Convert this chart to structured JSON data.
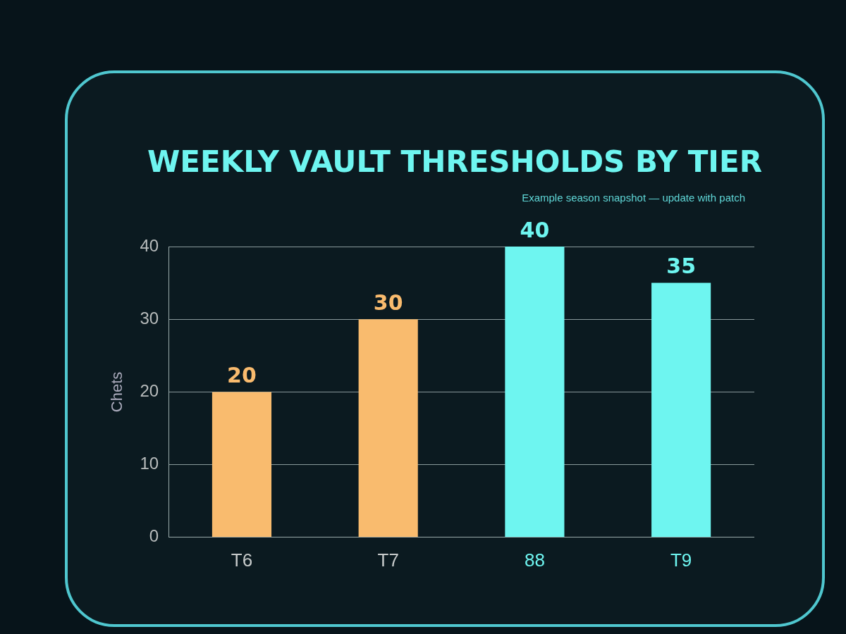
{
  "chart_data": {
    "type": "bar",
    "title": "WEEKLY VAULT THRESHOLDS BY TIER",
    "subtitle": "Example season snapshot — update with patch",
    "ylabel": "Chets",
    "categories": [
      "T6",
      "T7",
      "88",
      "T9"
    ],
    "values": [
      20,
      30,
      40,
      35
    ],
    "colors": [
      "#f9bb6e",
      "#f9bb6e",
      "#6ef5f0",
      "#6ef5f0"
    ],
    "ylim": [
      0,
      40
    ],
    "yticks": [
      0,
      10,
      20,
      30,
      40
    ],
    "grid": "y",
    "data_labels": true,
    "legend": false
  }
}
